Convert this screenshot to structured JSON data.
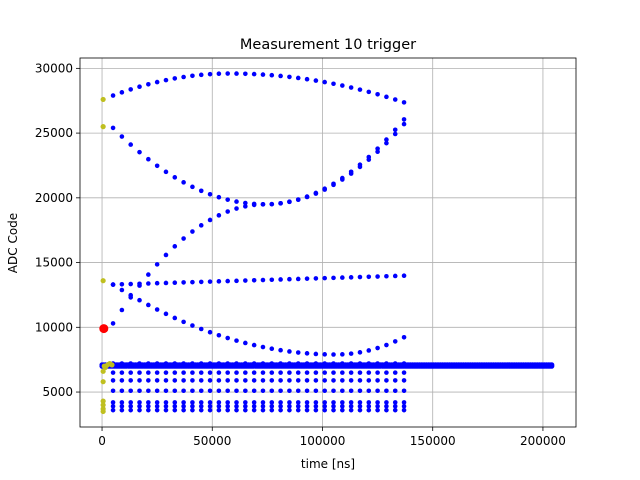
{
  "chart_data": {
    "type": "scatter",
    "title": "Measurement 10 trigger",
    "xlabel": "time [ns]",
    "ylabel": "ADC Code",
    "xlim": [
      -10000,
      215000
    ],
    "ylim": [
      2300,
      30800
    ],
    "grid": true,
    "xticks": [
      0,
      50000,
      100000,
      150000,
      200000
    ],
    "xtick_labels": [
      "0",
      "50000",
      "100000",
      "150000",
      "200000"
    ],
    "yticks": [
      5000,
      10000,
      15000,
      20000,
      25000,
      30000
    ],
    "ytick_labels": [
      "5000",
      "10000",
      "15000",
      "20000",
      "25000",
      "30000"
    ],
    "colors": {
      "main": "#0000ff",
      "early": "#bfbf1f",
      "trigger": "#ff0000"
    },
    "series": [
      {
        "color": "#0000ff",
        "style": "curves",
        "x_start": 5000,
        "x_end": 140000,
        "x_step": 4000,
        "curves": [
          {
            "kind": "arc",
            "y_start": 27900,
            "y_peak": 29600,
            "x_peak": 58000,
            "y_end": 27200
          },
          {
            "kind": "arc",
            "y_start": 25400,
            "y_peak": 19500,
            "x_peak": 74000,
            "y_end": 26700,
            "shape": "cross_down"
          },
          {
            "kind": "arc",
            "y_start": 10300,
            "y_peak": 19500,
            "x_peak": 74000,
            "y_end": 26300,
            "shape": "cross_up"
          },
          {
            "kind": "linear",
            "y_start": 13300,
            "y_end": 14000
          },
          {
            "kind": "arc",
            "y_start": 13300,
            "y_peak": 7900,
            "x_peak": 106000,
            "y_end": 9500
          },
          {
            "kind": "flat",
            "y": 7200
          },
          {
            "kind": "flat",
            "y": 7000
          },
          {
            "kind": "flat",
            "y": 6500
          },
          {
            "kind": "flat",
            "y": 5900
          },
          {
            "kind": "flat",
            "y": 5100
          },
          {
            "kind": "flat",
            "y": 4200
          },
          {
            "kind": "flat",
            "y": 3900
          },
          {
            "kind": "flat",
            "y": 3600
          }
        ]
      },
      {
        "color": "#0000ff",
        "style": "dense_band",
        "x_start": 0,
        "x_end": 204000,
        "x_step": 800,
        "y_values": [
          7000,
          7100
        ]
      },
      {
        "color": "#bfbf1f",
        "style": "points",
        "points": [
          [
            500,
            27600
          ],
          [
            500,
            25500
          ],
          [
            500,
            13600
          ],
          [
            500,
            6600
          ],
          [
            500,
            5800
          ],
          [
            500,
            4300
          ],
          [
            500,
            4000
          ],
          [
            500,
            3700
          ],
          [
            500,
            3500
          ],
          [
            1500,
            6900
          ],
          [
            2500,
            7100
          ],
          [
            3500,
            7200
          ],
          [
            4500,
            7100
          ],
          [
            1000,
            7000
          ]
        ]
      },
      {
        "color": "#ff0000",
        "style": "points",
        "size": "large",
        "points": [
          [
            800,
            9900
          ]
        ]
      }
    ]
  }
}
